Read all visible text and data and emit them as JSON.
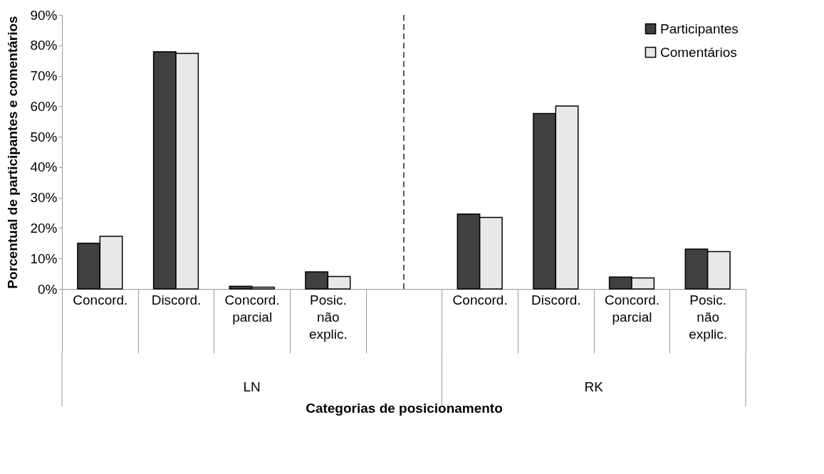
{
  "chart_data": {
    "type": "bar",
    "xlabel": "Categorias de posicionamento",
    "ylabel": "Porcentual de participantes e comentários",
    "categories": [
      "Concord.",
      "Discord.",
      "Concord. parcial",
      "Posic. não explic.",
      null,
      "Concord.",
      "Discord.",
      "Concord. parcial",
      "Posic. não explic."
    ],
    "series": [
      {
        "name": "Participantes",
        "color": "#404040",
        "values": [
          15,
          77.9,
          0.9,
          5.6,
          null,
          24.6,
          57.6,
          3.9,
          13.1
        ]
      },
      {
        "name": "Comentários",
        "color": "#e8e8e8",
        "values": [
          17.3,
          77.4,
          0.6,
          4.1,
          null,
          23.5,
          60.1,
          3.6,
          12.3
        ]
      }
    ],
    "ylim": [
      0,
      90
    ],
    "yticks": [
      {
        "value": 0,
        "label": "0%"
      },
      {
        "value": 10,
        "label": "10%"
      },
      {
        "value": 20,
        "label": "20%"
      },
      {
        "value": 30,
        "label": "30%"
      },
      {
        "value": 40,
        "label": "40%"
      },
      {
        "value": 50,
        "label": "50%"
      },
      {
        "value": 60,
        "label": "60%"
      },
      {
        "value": 70,
        "label": "70%"
      },
      {
        "value": 80,
        "label": "80%"
      },
      {
        "value": 90,
        "label": "90%"
      }
    ],
    "annotations": [
      "LN",
      "RK"
    ],
    "ref_lines": [
      {
        "axis": "x",
        "line_style": "dashed",
        "color": "#000000"
      }
    ],
    "legend": "top right"
  }
}
